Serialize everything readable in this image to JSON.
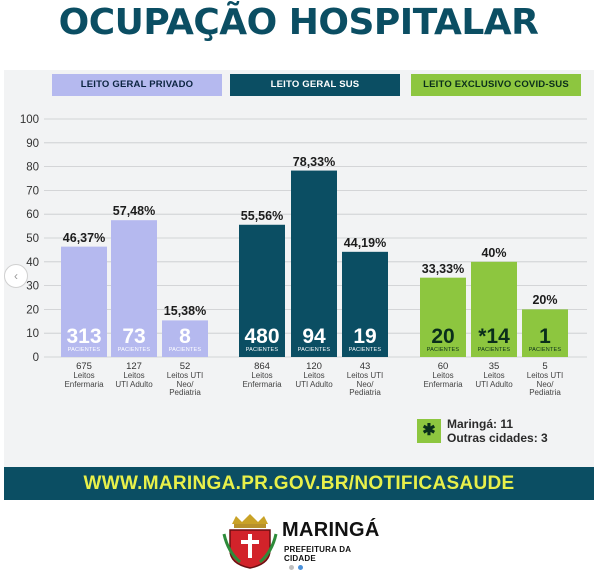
{
  "page": {
    "title": "OCUPAÇÃO HOSPITALAR",
    "website": "WWW.MARINGA.PR.GOV.BR/NOTIFICASAUDE",
    "logo_name": "MARINGÁ",
    "logo_subtitle": "PREFEITURA DA CIDADE",
    "nav_prev_icon": "chevron-left-icon"
  },
  "colors": {
    "title": "#0b4e63",
    "privado": "#b5b9ef",
    "sus": "#0b4e63",
    "covid": "#8dc63f",
    "url_text": "#e8f04a"
  },
  "note": {
    "icon": "asterisk-icon",
    "line1": "Maringá: 11",
    "line2": "Outras cidades: 3"
  },
  "chart_data": {
    "type": "bar",
    "ylim": [
      0,
      100
    ],
    "yticks": [
      "0",
      "10",
      "20",
      "30",
      "40",
      "50",
      "60",
      "70",
      "80",
      "90",
      "100"
    ],
    "grid": true,
    "groups": [
      {
        "name": "LEITO GERAL PRIVADO",
        "bars": [
          {
            "value": 46.37,
            "value_label": "46,37%",
            "patients": "313",
            "patients_label": "PACIENTES",
            "beds": "675",
            "label": [
              "Leitos",
              "Enfermaria"
            ]
          },
          {
            "value": 57.48,
            "value_label": "57,48%",
            "patients": "73",
            "patients_label": "PACIENTES",
            "beds": "127",
            "label": [
              "Leitos",
              "UTI Adulto"
            ]
          },
          {
            "value": 15.38,
            "value_label": "15,38%",
            "patients": "8",
            "patients_label": "PACIENTES",
            "beds": "52",
            "label": [
              "Leitos UTI",
              "Neo/",
              "Pediatria"
            ]
          }
        ]
      },
      {
        "name": "LEITO GERAL SUS",
        "bars": [
          {
            "value": 55.56,
            "value_label": "55,56%",
            "patients": "480",
            "patients_label": "PACIENTES",
            "beds": "864",
            "label": [
              "Leitos",
              "Enfermaria"
            ]
          },
          {
            "value": 78.33,
            "value_label": "78,33%",
            "patients": "94",
            "patients_label": "PACIENTES",
            "beds": "120",
            "label": [
              "Leitos",
              "UTI Adulto"
            ]
          },
          {
            "value": 44.19,
            "value_label": "44,19%",
            "patients": "19",
            "patients_label": "PACIENTES",
            "beds": "43",
            "label": [
              "Leitos UTI",
              "Neo/",
              "Pediatria"
            ]
          }
        ]
      },
      {
        "name": "LEITO EXCLUSIVO COVID-SUS",
        "bars": [
          {
            "value": 33.33,
            "value_label": "33,33%",
            "patients": "20",
            "patients_label": "PACIENTES",
            "beds": "60",
            "label": [
              "Leitos",
              "Enfermaria"
            ]
          },
          {
            "value": 40,
            "value_label": "40%",
            "patients": "*14",
            "patients_label": "PACIENTES",
            "beds": "35",
            "label": [
              "Leitos",
              "UTI Adulto"
            ]
          },
          {
            "value": 20,
            "value_label": "20%",
            "patients": "1",
            "patients_label": "PACIENTES",
            "beds": "5",
            "label": [
              "Leitos UTI",
              "Neo/",
              "Pediatria"
            ]
          }
        ]
      }
    ]
  }
}
